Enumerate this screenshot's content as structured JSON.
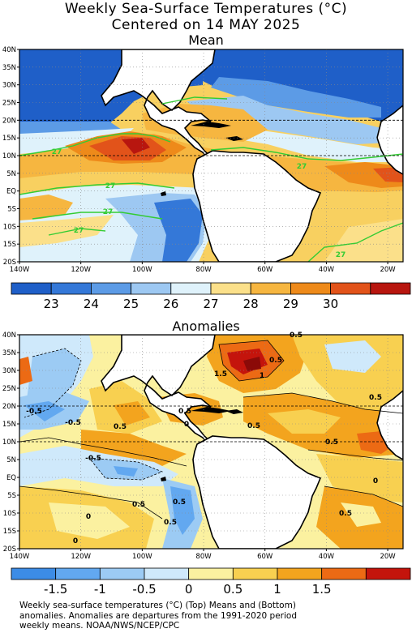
{
  "title_line1": "Weekly Sea-Surface Temperatures (°C)",
  "title_line2": "Centered on 14 MAY 2025",
  "panels": [
    {
      "title": "Mean",
      "lat_labels": [
        "40N",
        "35N",
        "30N",
        "25N",
        "20N",
        "15N",
        "10N",
        "5N",
        "EQ",
        "5S",
        "10S",
        "15S",
        "20S"
      ],
      "lon_labels": [
        "140W",
        "120W",
        "100W",
        "80W",
        "60W",
        "40W",
        "20W"
      ],
      "contour_labels": [
        "27",
        "27",
        "27",
        "27",
        "27",
        "27"
      ],
      "colorbar": {
        "colors": [
          "#1f5fc8",
          "#3478d8",
          "#5c9be6",
          "#9dc8f2",
          "#dff2fb",
          "#fbe08a",
          "#f6b640",
          "#ee8a1a",
          "#e2531a",
          "#b8160f"
        ],
        "labels": [
          "23",
          "24",
          "25",
          "26",
          "27",
          "28",
          "29",
          "30"
        ]
      }
    },
    {
      "title": "Anomalies",
      "lat_labels": [
        "40N",
        "35N",
        "30N",
        "25N",
        "20N",
        "15N",
        "10N",
        "5N",
        "EQ",
        "5S",
        "10S",
        "15S",
        "20S"
      ],
      "lon_labels": [
        "140W",
        "120W",
        "100W",
        "80W",
        "60W",
        "40W",
        "20W"
      ],
      "contour_labels": [
        "-0.5",
        "-0.5",
        "0.5",
        "0.5",
        "0.5",
        "1.5",
        "1",
        "0.5",
        "0.5",
        "0.5",
        "-0.5",
        "0.5",
        "0.5",
        "0.5",
        "0.5",
        "0",
        "0",
        "0",
        "0",
        "0.5"
      ],
      "colorbar": {
        "colors": [
          "#3c8ce6",
          "#62a8f0",
          "#9ccbf4",
          "#cfe9fb",
          "#fbf1a0",
          "#f8d050",
          "#f3a41e",
          "#ec6a14",
          "#c4140c"
        ],
        "labels": [
          "-1.5",
          "-1",
          "-0.5",
          "0",
          "0.5",
          "1",
          "1.5"
        ]
      }
    }
  ],
  "caption": [
    "Weekly sea-surface temperatures (°C) (Top) Means and (Bottom)",
    "anomalies. Anomalies are departures from the 1991-2020 period",
    "weekly means. NOAA/NWS/NCEP/CPC"
  ],
  "colors": {
    "land": "#ffffff",
    "coast": "#000000",
    "contour_27": "#33cc33",
    "grid": "#999999"
  },
  "legend": {
    "mean_range": "23-30 °C",
    "anomaly_range": "-1.5 to 1.5 °C"
  }
}
